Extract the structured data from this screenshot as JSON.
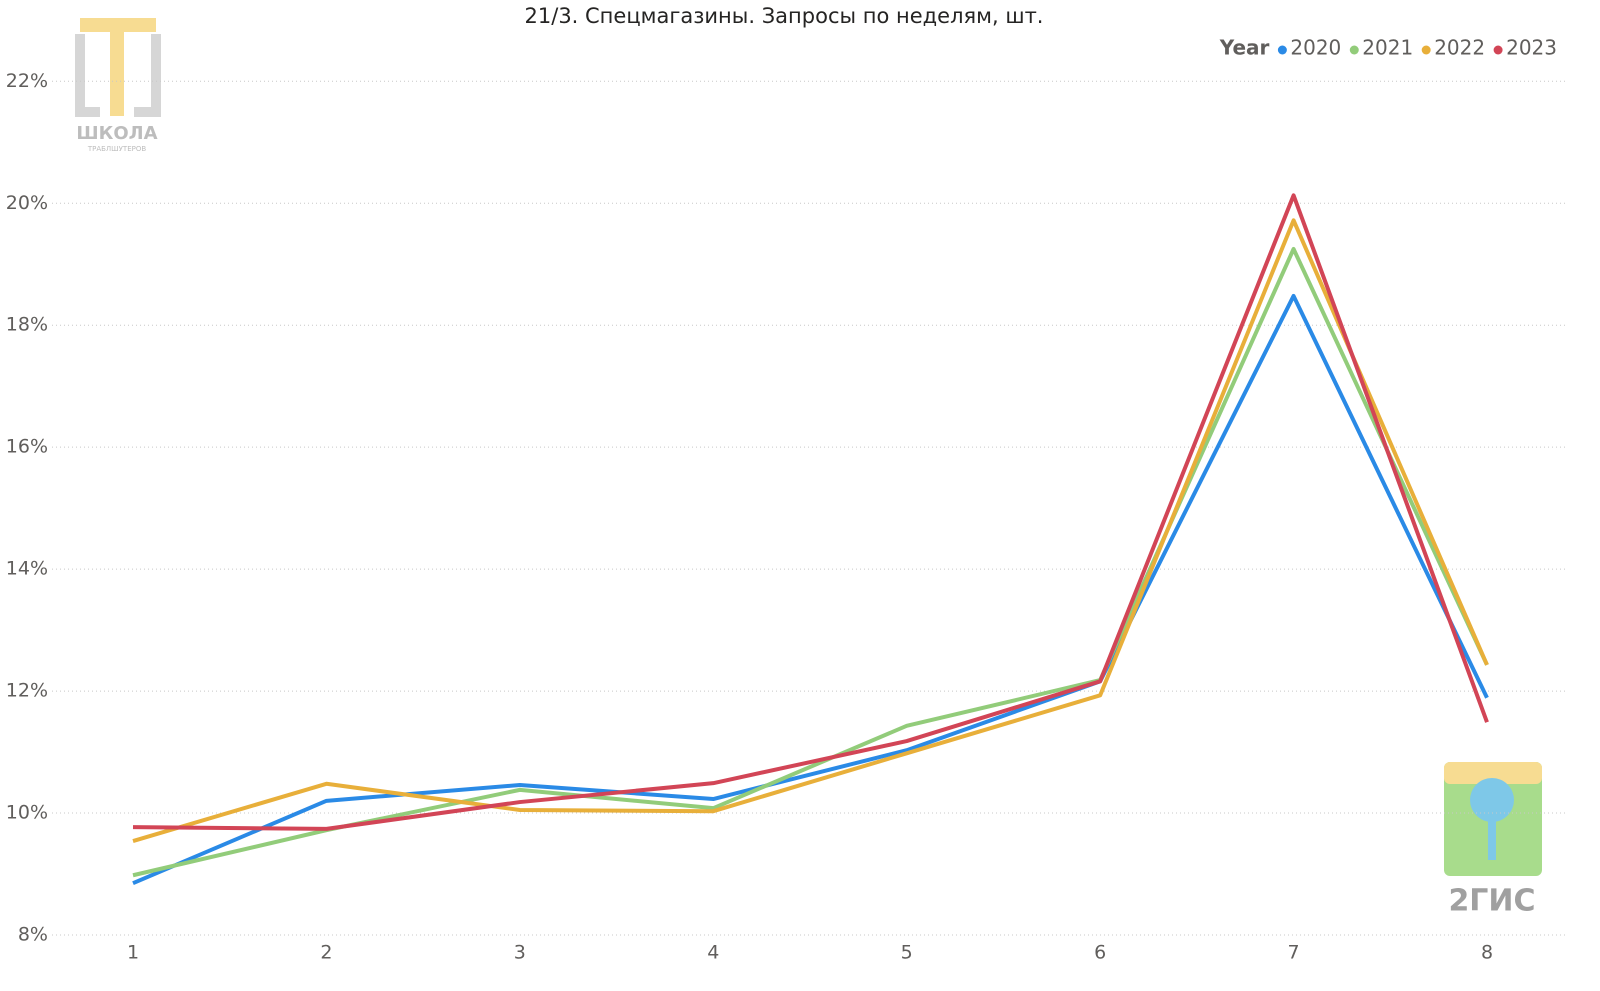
{
  "chart_data": {
    "type": "line",
    "title": "21/3. Спецмагазины. Запросы по неделям, шт.",
    "legend_title": "Year",
    "logos": [
      "ШКОЛА",
      "ТРАБЛШУТЕРОВ",
      "2ГИС"
    ],
    "categories": [
      "1",
      "2",
      "3",
      "4",
      "5",
      "6",
      "7",
      "8"
    ],
    "series": [
      {
        "name": "2020",
        "color": "#2a8ae6",
        "values": [
          8.85,
          10.2,
          10.46,
          10.23,
          11.03,
          12.16,
          18.48,
          11.89
        ]
      },
      {
        "name": "2021",
        "color": "#92cc7a",
        "values": [
          8.98,
          9.72,
          10.38,
          10.08,
          11.43,
          12.18,
          19.25,
          12.43
        ]
      },
      {
        "name": "2022",
        "color": "#e8af3a",
        "values": [
          9.54,
          10.48,
          10.05,
          10.03,
          10.98,
          11.93,
          19.72,
          12.43
        ]
      },
      {
        "name": "2023",
        "color": "#d24556",
        "values": [
          9.77,
          9.74,
          10.18,
          10.49,
          11.18,
          12.16,
          20.13,
          11.49
        ]
      }
    ],
    "ylim": [
      8,
      22.3
    ],
    "yticks": [
      {
        "value": 8,
        "label": "8%"
      },
      {
        "value": 10,
        "label": "10%"
      },
      {
        "value": 12,
        "label": "12%"
      },
      {
        "value": 14,
        "label": "14%"
      },
      {
        "value": 16,
        "label": "16%"
      },
      {
        "value": 18,
        "label": "18%"
      },
      {
        "value": 20,
        "label": "20%"
      },
      {
        "value": 22,
        "label": "22%"
      }
    ],
    "grid": true
  }
}
